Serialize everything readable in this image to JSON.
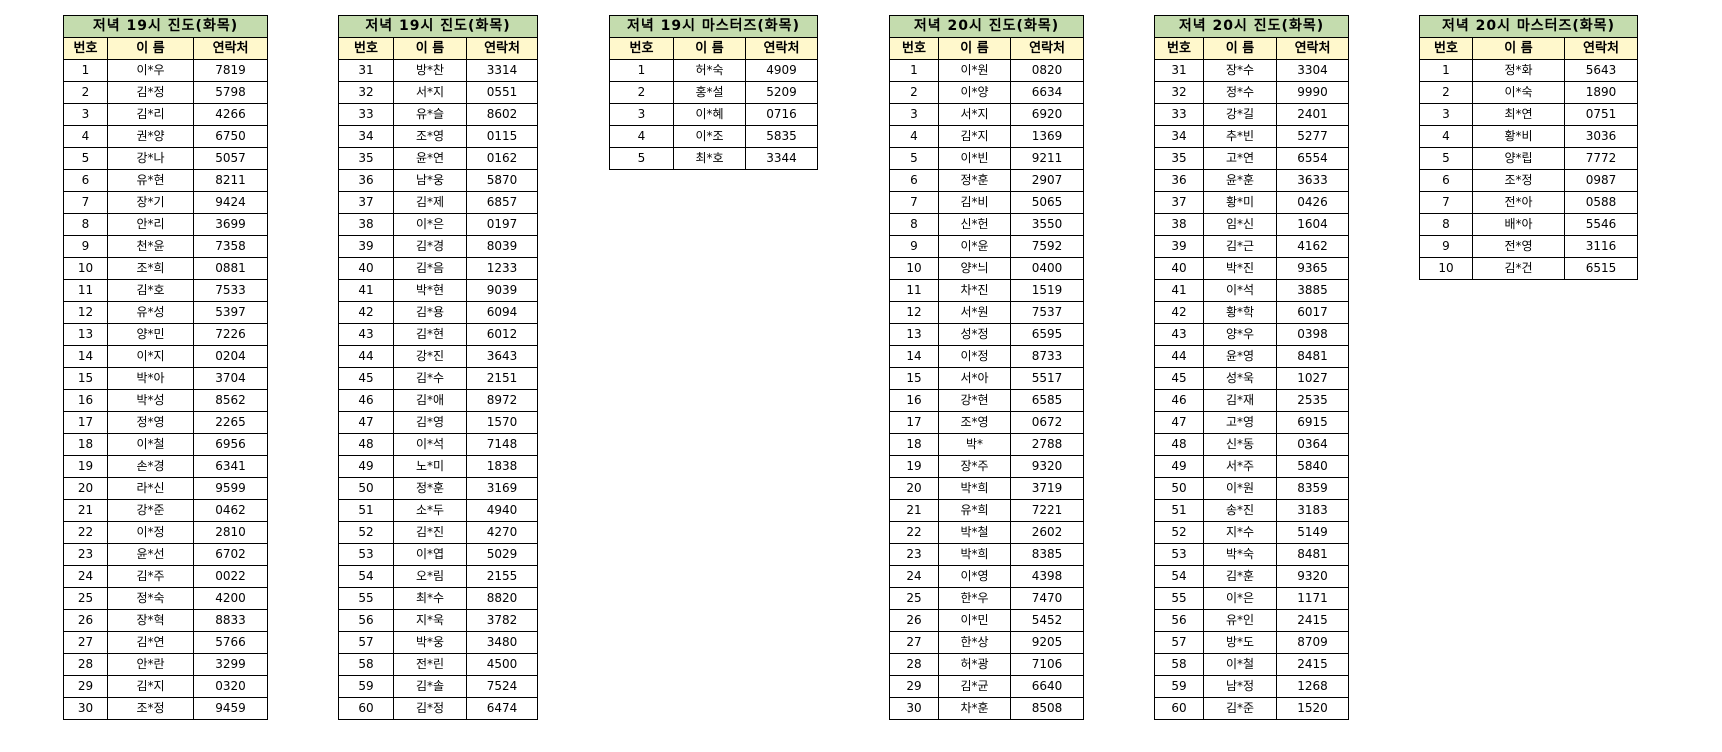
{
  "colors": {
    "title_bg": "#c4dcae",
    "header_bg": "#fff8cc",
    "border": "#000000"
  },
  "columns": [
    "번호",
    "이 름",
    "연락처"
  ],
  "tables": [
    {
      "title": "저녁 19시 진도(화목)",
      "rows": [
        [
          "1",
          "이*우",
          "7819"
        ],
        [
          "2",
          "김*정",
          "5798"
        ],
        [
          "3",
          "김*리",
          "4266"
        ],
        [
          "4",
          "권*양",
          "6750"
        ],
        [
          "5",
          "강*나",
          "5057"
        ],
        [
          "6",
          "유*현",
          "8211"
        ],
        [
          "7",
          "장*기",
          "9424"
        ],
        [
          "8",
          "안*리",
          "3699"
        ],
        [
          "9",
          "천*윤",
          "7358"
        ],
        [
          "10",
          "조*희",
          "0881"
        ],
        [
          "11",
          "김*호",
          "7533"
        ],
        [
          "12",
          "유*성",
          "5397"
        ],
        [
          "13",
          "양*민",
          "7226"
        ],
        [
          "14",
          "이*지",
          "0204"
        ],
        [
          "15",
          "박*아",
          "3704"
        ],
        [
          "16",
          "박*성",
          "8562"
        ],
        [
          "17",
          "정*영",
          "2265"
        ],
        [
          "18",
          "이*철",
          "6956"
        ],
        [
          "19",
          "손*경",
          "6341"
        ],
        [
          "20",
          "라*신",
          "9599"
        ],
        [
          "21",
          "강*준",
          "0462"
        ],
        [
          "22",
          "이*정",
          "2810"
        ],
        [
          "23",
          "윤*선",
          "6702"
        ],
        [
          "24",
          "김*주",
          "0022"
        ],
        [
          "25",
          "정*숙",
          "4200"
        ],
        [
          "26",
          "장*혁",
          "8833"
        ],
        [
          "27",
          "김*연",
          "5766"
        ],
        [
          "28",
          "안*란",
          "3299"
        ],
        [
          "29",
          "김*지",
          "0320"
        ],
        [
          "30",
          "조*정",
          "9459"
        ]
      ]
    },
    {
      "title": "저녁 19시 진도(화목)",
      "rows": [
        [
          "31",
          "방*찬",
          "3314"
        ],
        [
          "32",
          "서*지",
          "0551"
        ],
        [
          "33",
          "유*슬",
          "8602"
        ],
        [
          "34",
          "조*영",
          "0115"
        ],
        [
          "35",
          "윤*연",
          "0162"
        ],
        [
          "36",
          "남*웅",
          "5870"
        ],
        [
          "37",
          "김*제",
          "6857"
        ],
        [
          "38",
          "이*은",
          "0197"
        ],
        [
          "39",
          "김*경",
          "8039"
        ],
        [
          "40",
          "김*음",
          "1233"
        ],
        [
          "41",
          "박*현",
          "9039"
        ],
        [
          "42",
          "김*용",
          "6094"
        ],
        [
          "43",
          "김*현",
          "6012"
        ],
        [
          "44",
          "강*진",
          "3643"
        ],
        [
          "45",
          "김*수",
          "2151"
        ],
        [
          "46",
          "김*애",
          "8972"
        ],
        [
          "47",
          "김*영",
          "1570"
        ],
        [
          "48",
          "이*석",
          "7148"
        ],
        [
          "49",
          "노*미",
          "1838"
        ],
        [
          "50",
          "정*훈",
          "3169"
        ],
        [
          "51",
          "소*두",
          "4940"
        ],
        [
          "52",
          "김*진",
          "4270"
        ],
        [
          "53",
          "이*엽",
          "5029"
        ],
        [
          "54",
          "오*림",
          "2155"
        ],
        [
          "55",
          "최*수",
          "8820"
        ],
        [
          "56",
          "지*욱",
          "3782"
        ],
        [
          "57",
          "박*웅",
          "3480"
        ],
        [
          "58",
          "전*린",
          "4500"
        ],
        [
          "59",
          "김*솔",
          "7524"
        ],
        [
          "60",
          "김*정",
          "6474"
        ]
      ]
    },
    {
      "title": "저녁 19시 마스터즈(화목)",
      "rows": [
        [
          "1",
          "허*숙",
          "4909"
        ],
        [
          "2",
          "홍*설",
          "5209"
        ],
        [
          "3",
          "이*혜",
          "0716"
        ],
        [
          "4",
          "이*조",
          "5835"
        ],
        [
          "5",
          "최*호",
          "3344"
        ]
      ]
    },
    {
      "title": "저녁 20시 진도(화목)",
      "rows": [
        [
          "1",
          "이*원",
          "0820"
        ],
        [
          "2",
          "이*양",
          "6634"
        ],
        [
          "3",
          "서*지",
          "6920"
        ],
        [
          "4",
          "김*지",
          "1369"
        ],
        [
          "5",
          "이*빈",
          "9211"
        ],
        [
          "6",
          "정*훈",
          "2907"
        ],
        [
          "7",
          "김*비",
          "5065"
        ],
        [
          "8",
          "신*헌",
          "3550"
        ],
        [
          "9",
          "이*윤",
          "7592"
        ],
        [
          "10",
          "양*늬",
          "0400"
        ],
        [
          "11",
          "차*진",
          "1519"
        ],
        [
          "12",
          "서*원",
          "7537"
        ],
        [
          "13",
          "성*정",
          "6595"
        ],
        [
          "14",
          "이*정",
          "8733"
        ],
        [
          "15",
          "서*아",
          "5517"
        ],
        [
          "16",
          "강*현",
          "6585"
        ],
        [
          "17",
          "조*영",
          "0672"
        ],
        [
          "18",
          "박*",
          "2788"
        ],
        [
          "19",
          "장*주",
          "9320"
        ],
        [
          "20",
          "박*희",
          "3719"
        ],
        [
          "21",
          "유*희",
          "7221"
        ],
        [
          "22",
          "박*철",
          "2602"
        ],
        [
          "23",
          "박*희",
          "8385"
        ],
        [
          "24",
          "이*영",
          "4398"
        ],
        [
          "25",
          "한*우",
          "7470"
        ],
        [
          "26",
          "이*민",
          "5452"
        ],
        [
          "27",
          "한*상",
          "9205"
        ],
        [
          "28",
          "허*광",
          "7106"
        ],
        [
          "29",
          "김*균",
          "6640"
        ],
        [
          "30",
          "차*훈",
          "8508"
        ]
      ]
    },
    {
      "title": "저녁 20시 진도(화목)",
      "rows": [
        [
          "31",
          "장*수",
          "3304"
        ],
        [
          "32",
          "정*수",
          "9990"
        ],
        [
          "33",
          "강*길",
          "2401"
        ],
        [
          "34",
          "추*빈",
          "5277"
        ],
        [
          "35",
          "고*연",
          "6554"
        ],
        [
          "36",
          "윤*훈",
          "3633"
        ],
        [
          "37",
          "황*미",
          "0426"
        ],
        [
          "38",
          "임*신",
          "1604"
        ],
        [
          "39",
          "김*근",
          "4162"
        ],
        [
          "40",
          "박*진",
          "9365"
        ],
        [
          "41",
          "이*석",
          "3885"
        ],
        [
          "42",
          "황*학",
          "6017"
        ],
        [
          "43",
          "양*우",
          "0398"
        ],
        [
          "44",
          "윤*영",
          "8481"
        ],
        [
          "45",
          "성*욱",
          "1027"
        ],
        [
          "46",
          "김*재",
          "2535"
        ],
        [
          "47",
          "고*영",
          "6915"
        ],
        [
          "48",
          "신*동",
          "0364"
        ],
        [
          "49",
          "서*주",
          "5840"
        ],
        [
          "50",
          "이*원",
          "8359"
        ],
        [
          "51",
          "송*진",
          "3183"
        ],
        [
          "52",
          "지*수",
          "5149"
        ],
        [
          "53",
          "박*숙",
          "8481"
        ],
        [
          "54",
          "김*훈",
          "9320"
        ],
        [
          "55",
          "이*은",
          "1171"
        ],
        [
          "56",
          "유*인",
          "2415"
        ],
        [
          "57",
          "방*도",
          "8709"
        ],
        [
          "58",
          "이*철",
          "2415"
        ],
        [
          "59",
          "남*정",
          "1268"
        ],
        [
          "60",
          "김*준",
          "1520"
        ]
      ]
    },
    {
      "title": "저녁 20시 마스터즈(화목)",
      "rows": [
        [
          "1",
          "정*화",
          "5643"
        ],
        [
          "2",
          "이*숙",
          "1890"
        ],
        [
          "3",
          "최*연",
          "0751"
        ],
        [
          "4",
          "황*비",
          "3036"
        ],
        [
          "5",
          "양*립",
          "7772"
        ],
        [
          "6",
          "조*정",
          "0987"
        ],
        [
          "7",
          "전*아",
          "0588"
        ],
        [
          "8",
          "배*아",
          "5546"
        ],
        [
          "9",
          "전*영",
          "3116"
        ],
        [
          "10",
          "김*건",
          "6515"
        ]
      ]
    }
  ]
}
